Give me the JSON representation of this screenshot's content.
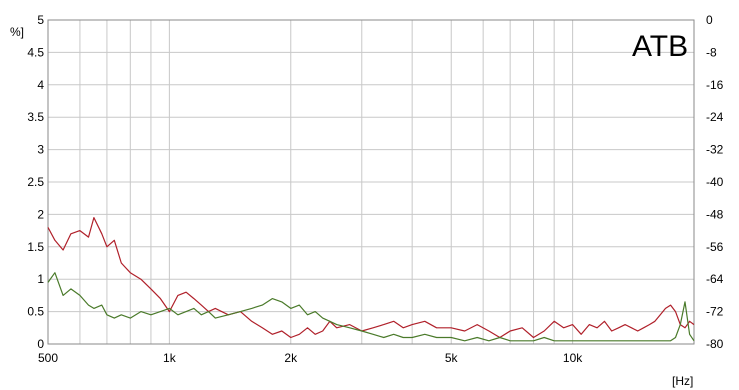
{
  "chart_data": {
    "type": "line",
    "x_scale": "log",
    "xlim": [
      500,
      20000
    ],
    "x_ticks": [
      {
        "value": 500,
        "label": "500"
      },
      {
        "value": 1000,
        "label": "1k"
      },
      {
        "value": 2000,
        "label": "2k"
      },
      {
        "value": 5000,
        "label": "5k"
      },
      {
        "value": 10000,
        "label": "10k"
      }
    ],
    "x_unit": "[Hz]",
    "y_left": {
      "unit": "%]",
      "lim": [
        0,
        5
      ],
      "ticks": [
        "0",
        "0.5",
        "1",
        "1.5",
        "2",
        "2.5",
        "3",
        "3.5",
        "4",
        "4.5",
        "5"
      ]
    },
    "y_right": {
      "lim": [
        -80,
        0
      ],
      "ticks": [
        "0",
        "-8",
        "-16",
        "-24",
        "-32",
        "-40",
        "-48",
        "-56",
        "-64",
        "-72",
        "-80"
      ]
    },
    "grid": true,
    "annotation": "ATB",
    "series": [
      {
        "color": "#b0202a",
        "x": [
          500,
          520,
          545,
          570,
          600,
          630,
          650,
          680,
          700,
          730,
          760,
          800,
          850,
          900,
          950,
          1000,
          1050,
          1100,
          1150,
          1200,
          1250,
          1300,
          1400,
          1500,
          1600,
          1700,
          1800,
          1900,
          2000,
          2100,
          2200,
          2300,
          2400,
          2500,
          2600,
          2800,
          3000,
          3200,
          3400,
          3600,
          3800,
          4000,
          4300,
          4600,
          5000,
          5400,
          5800,
          6200,
          6600,
          7000,
          7500,
          8000,
          8500,
          9000,
          9500,
          10000,
          10500,
          11000,
          11500,
          12000,
          12500,
          13000,
          13500,
          14000,
          14500,
          15000,
          15500,
          16000,
          16500,
          17000,
          17500,
          18000,
          18500,
          19000,
          19500,
          20000
        ],
        "y": [
          1.8,
          1.6,
          1.45,
          1.7,
          1.75,
          1.65,
          1.95,
          1.7,
          1.5,
          1.6,
          1.25,
          1.1,
          1.0,
          0.85,
          0.7,
          0.5,
          0.75,
          0.8,
          0.7,
          0.6,
          0.5,
          0.55,
          0.45,
          0.5,
          0.35,
          0.25,
          0.15,
          0.2,
          0.1,
          0.15,
          0.25,
          0.15,
          0.2,
          0.35,
          0.25,
          0.3,
          0.2,
          0.25,
          0.3,
          0.35,
          0.25,
          0.3,
          0.35,
          0.25,
          0.25,
          0.2,
          0.3,
          0.2,
          0.1,
          0.2,
          0.25,
          0.1,
          0.2,
          0.35,
          0.25,
          0.3,
          0.15,
          0.3,
          0.25,
          0.35,
          0.2,
          0.25,
          0.3,
          0.25,
          0.2,
          0.25,
          0.3,
          0.35,
          0.45,
          0.55,
          0.6,
          0.5,
          0.3,
          0.25,
          0.35,
          0.3
        ]
      },
      {
        "color": "#4a7a2a",
        "x": [
          500,
          520,
          545,
          570,
          600,
          630,
          650,
          680,
          700,
          730,
          760,
          800,
          850,
          900,
          950,
          1000,
          1050,
          1100,
          1150,
          1200,
          1250,
          1300,
          1400,
          1500,
          1600,
          1700,
          1800,
          1900,
          2000,
          2100,
          2200,
          2300,
          2400,
          2500,
          2600,
          2800,
          3000,
          3200,
          3400,
          3600,
          3800,
          4000,
          4300,
          4600,
          5000,
          5400,
          5800,
          6200,
          6600,
          7000,
          7500,
          8000,
          8500,
          9000,
          9500,
          10000,
          10500,
          11000,
          11500,
          12000,
          12500,
          13000,
          13500,
          14000,
          14500,
          15000,
          15500,
          16000,
          16500,
          17000,
          17500,
          18000,
          18500,
          19000,
          19500,
          20000
        ],
        "y": [
          0.95,
          1.1,
          0.75,
          0.85,
          0.75,
          0.6,
          0.55,
          0.6,
          0.45,
          0.4,
          0.45,
          0.4,
          0.5,
          0.45,
          0.5,
          0.55,
          0.45,
          0.5,
          0.55,
          0.45,
          0.5,
          0.4,
          0.45,
          0.5,
          0.55,
          0.6,
          0.7,
          0.65,
          0.55,
          0.6,
          0.45,
          0.5,
          0.4,
          0.35,
          0.3,
          0.25,
          0.2,
          0.15,
          0.1,
          0.15,
          0.1,
          0.1,
          0.15,
          0.1,
          0.1,
          0.05,
          0.1,
          0.05,
          0.1,
          0.05,
          0.05,
          0.05,
          0.1,
          0.05,
          0.05,
          0.05,
          0.05,
          0.05,
          0.05,
          0.05,
          0.05,
          0.05,
          0.05,
          0.05,
          0.05,
          0.05,
          0.05,
          0.05,
          0.05,
          0.05,
          0.05,
          0.1,
          0.3,
          0.65,
          0.15,
          0.05
        ]
      }
    ]
  }
}
